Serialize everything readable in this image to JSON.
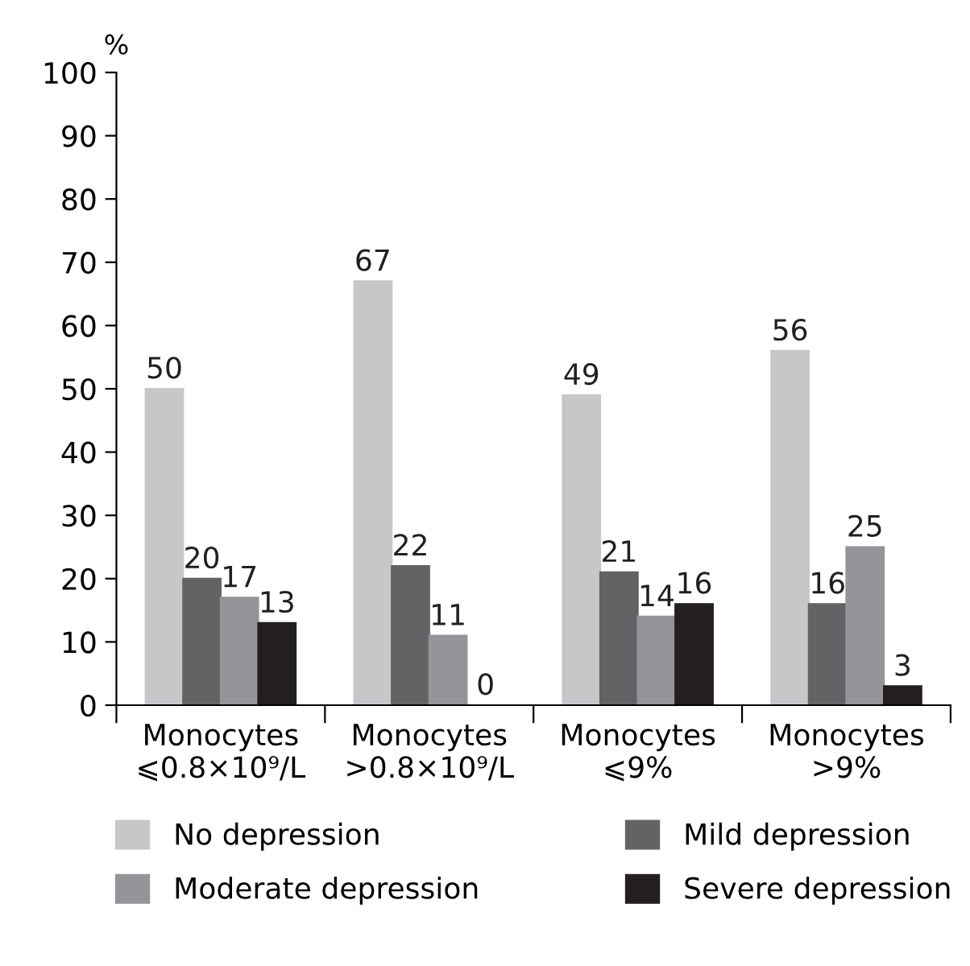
{
  "chart_data": {
    "type": "bar",
    "ylabel": "%",
    "categories": [
      "Monocytes\n⩽0.8×10⁹/L",
      "Monocytes\n>0.8×10⁹/L",
      "Monocytes\n⩽9%",
      "Monocytes\n>9%"
    ],
    "series": [
      {
        "name": "No depression",
        "color": "#c6c7c9",
        "values": [
          50,
          67,
          49,
          56
        ]
      },
      {
        "name": "Mild depression",
        "color": "#636365",
        "values": [
          20,
          22,
          21,
          16
        ]
      },
      {
        "name": "Moderate depression",
        "color": "#939598",
        "values": [
          17,
          11,
          14,
          25
        ]
      },
      {
        "name": "Severe depression",
        "color": "#231f20",
        "values": [
          13,
          0,
          16,
          3
        ]
      }
    ],
    "ylim": [
      0,
      100
    ],
    "yticks": [
      0,
      10,
      20,
      30,
      40,
      50,
      60,
      70,
      80,
      90,
      100
    ],
    "data_labels": true,
    "grid": false,
    "legend": "bottom"
  }
}
